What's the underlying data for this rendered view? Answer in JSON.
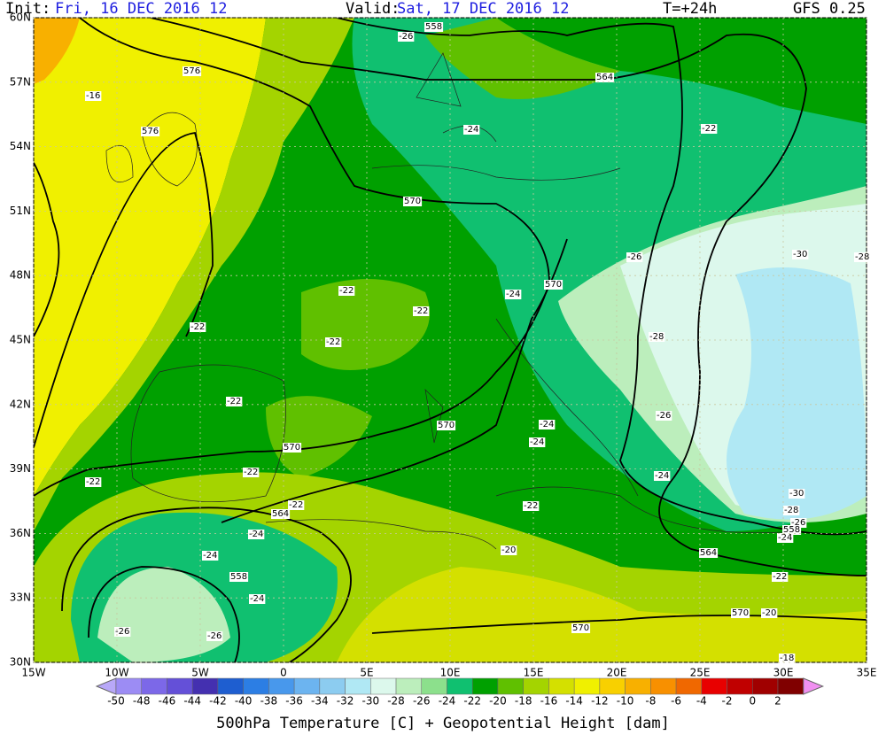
{
  "header": {
    "init_label": "Init:",
    "init": "Fri, 16 DEC 2016  12",
    "valid_label": "Valid:",
    "valid": "Sat, 17 DEC 2016  12",
    "step": "T=+24h",
    "model": "GFS 0.25"
  },
  "map": {
    "lat_labels": [
      "60N",
      "57N",
      "54N",
      "51N",
      "48N",
      "45N",
      "42N",
      "39N",
      "36N",
      "33N",
      "30N"
    ],
    "lon_labels": [
      "15W",
      "10W",
      "5W",
      "0",
      "5E",
      "10E",
      "15E",
      "20E",
      "25E",
      "30E",
      "35E"
    ],
    "contour_labels": [
      "-26",
      "558",
      "576",
      "-16",
      "576",
      "564",
      "-24",
      "-22",
      "570",
      "-26",
      "-30",
      "-28",
      "-22",
      "-24",
      "570",
      "-22",
      "-22",
      "-22",
      "-28",
      "-22",
      "-26",
      "-24",
      "-24",
      "570",
      "570",
      "-22",
      "-24",
      "-22",
      "-30",
      "-22",
      "-28",
      "564",
      "-22",
      "-26",
      "558",
      "-24",
      "-24",
      "-24",
      "-20",
      "564",
      "558",
      "-22",
      "-24",
      "570",
      "-20",
      "570",
      "-26",
      "-26",
      "-18"
    ]
  },
  "colorbar": {
    "labels": [
      "-50",
      "-48",
      "-46",
      "-44",
      "-42",
      "-40",
      "-38",
      "-36",
      "-34",
      "-32",
      "-30",
      "-28",
      "-26",
      "-24",
      "-22",
      "-20",
      "-18",
      "-16",
      "-14",
      "-12",
      "-10",
      "-8",
      "-6",
      "-4",
      "-2",
      "0",
      "2"
    ],
    "colors": [
      "#9c8cf4",
      "#7c68e8",
      "#6450d8",
      "#4430b0",
      "#1e5ed0",
      "#2c7ee4",
      "#4898ec",
      "#6cb4f0",
      "#8cccf0",
      "#b0e8f4",
      "#dcf8ec",
      "#bceebc",
      "#8ce08c",
      "#10c070",
      "#00a000",
      "#60c000",
      "#a4d400",
      "#d4e000",
      "#f0f000",
      "#f8d000",
      "#f8b000",
      "#f89000",
      "#f06800",
      "#e80000",
      "#c00000",
      "#a00000",
      "#800000"
    ],
    "title": "500hPa Temperature [C] + Geopotential Height [dam]"
  }
}
